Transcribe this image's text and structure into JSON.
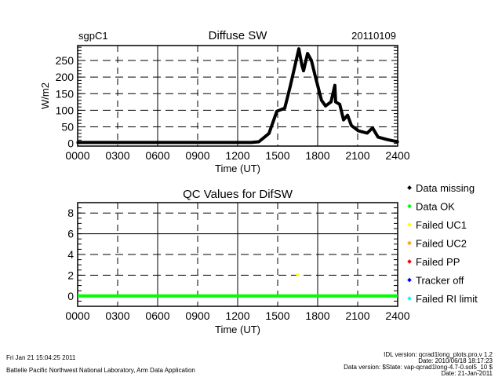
{
  "chart_data": [
    {
      "type": "line",
      "title": "Diffuse SW",
      "site": "sgpC1",
      "date": "20110109",
      "xlabel": "Time (UT)",
      "ylabel": "W/m2",
      "xlim": [
        0,
        2400
      ],
      "ylim": [
        -8,
        295
      ],
      "xticks": [
        "0000",
        "0300",
        "0600",
        "0900",
        "1200",
        "1500",
        "1800",
        "2100",
        "2400"
      ],
      "yticks": [
        "0",
        "50",
        "100",
        "150",
        "200",
        "250"
      ],
      "grid": true,
      "series": [
        {
          "name": "Diffuse SW",
          "color": "#000000",
          "x": [
            0,
            300,
            600,
            900,
            1200,
            1300,
            1359,
            1435,
            1494,
            1553,
            1594,
            1635,
            1659,
            1682,
            1694,
            1724,
            1753,
            1782,
            1829,
            1859,
            1900,
            1929,
            1935,
            1965,
            1994,
            2024,
            2053,
            2106,
            2171,
            2212,
            2253,
            2318,
            2376,
            2400
          ],
          "y": [
            3,
            3,
            3,
            3,
            3,
            3,
            5,
            30,
            97,
            106,
            172,
            243,
            285,
            236,
            219,
            271,
            250,
            203,
            130,
            113,
            125,
            175,
            125,
            118,
            71,
            85,
            54,
            38,
            31,
            47,
            19,
            12,
            7,
            5
          ]
        }
      ]
    },
    {
      "type": "scatter",
      "title": "QC Values for DifSW",
      "xlabel": "Time (UT)",
      "xlim": [
        0,
        2400
      ],
      "ylim": [
        -1,
        9
      ],
      "xticks": [
        "0000",
        "0300",
        "0600",
        "0900",
        "1200",
        "1500",
        "1800",
        "2100",
        "2400"
      ],
      "yticks": [
        "0",
        "2",
        "4",
        "6",
        "8"
      ],
      "grid": true,
      "series": [
        {
          "name": "Data OK",
          "color": "#00ff00",
          "x": [
            0,
            2400
          ],
          "y": [
            0,
            0
          ],
          "style": "line"
        },
        {
          "name": "Failed UC1",
          "color": "#ffff00",
          "x": [
            1650
          ],
          "y": [
            2
          ],
          "style": "point"
        }
      ],
      "legend": {
        "placement": "right",
        "entries": [
          {
            "label": "Data missing",
            "color": "#000000"
          },
          {
            "label": "Data OK",
            "color": "#00ff00"
          },
          {
            "label": "Failed UC1",
            "color": "#ffff00"
          },
          {
            "label": "Failed UC2",
            "color": "#ffa500"
          },
          {
            "label": "Failed PP",
            "color": "#ff0000"
          },
          {
            "label": "Tracker off",
            "color": "#0000ff"
          },
          {
            "label": "Failed RI limit",
            "color": "#00ffff"
          }
        ]
      }
    }
  ],
  "footer": {
    "timestamp": "Fri Jan 21 15:04:25 2011",
    "organization": "Battelle Pacific Northwest National Laboratory, Arm Data Application",
    "idl_version": "IDL version: qcrad1long_plots.pro,v 1.2",
    "idl_date": "Date: 2010/06/18 18:17:23",
    "data_version": "Data version: $State: vap-qcrad1long-4.7-0.sol5_10 $",
    "data_date": "Date: 21-Jan-2011"
  }
}
